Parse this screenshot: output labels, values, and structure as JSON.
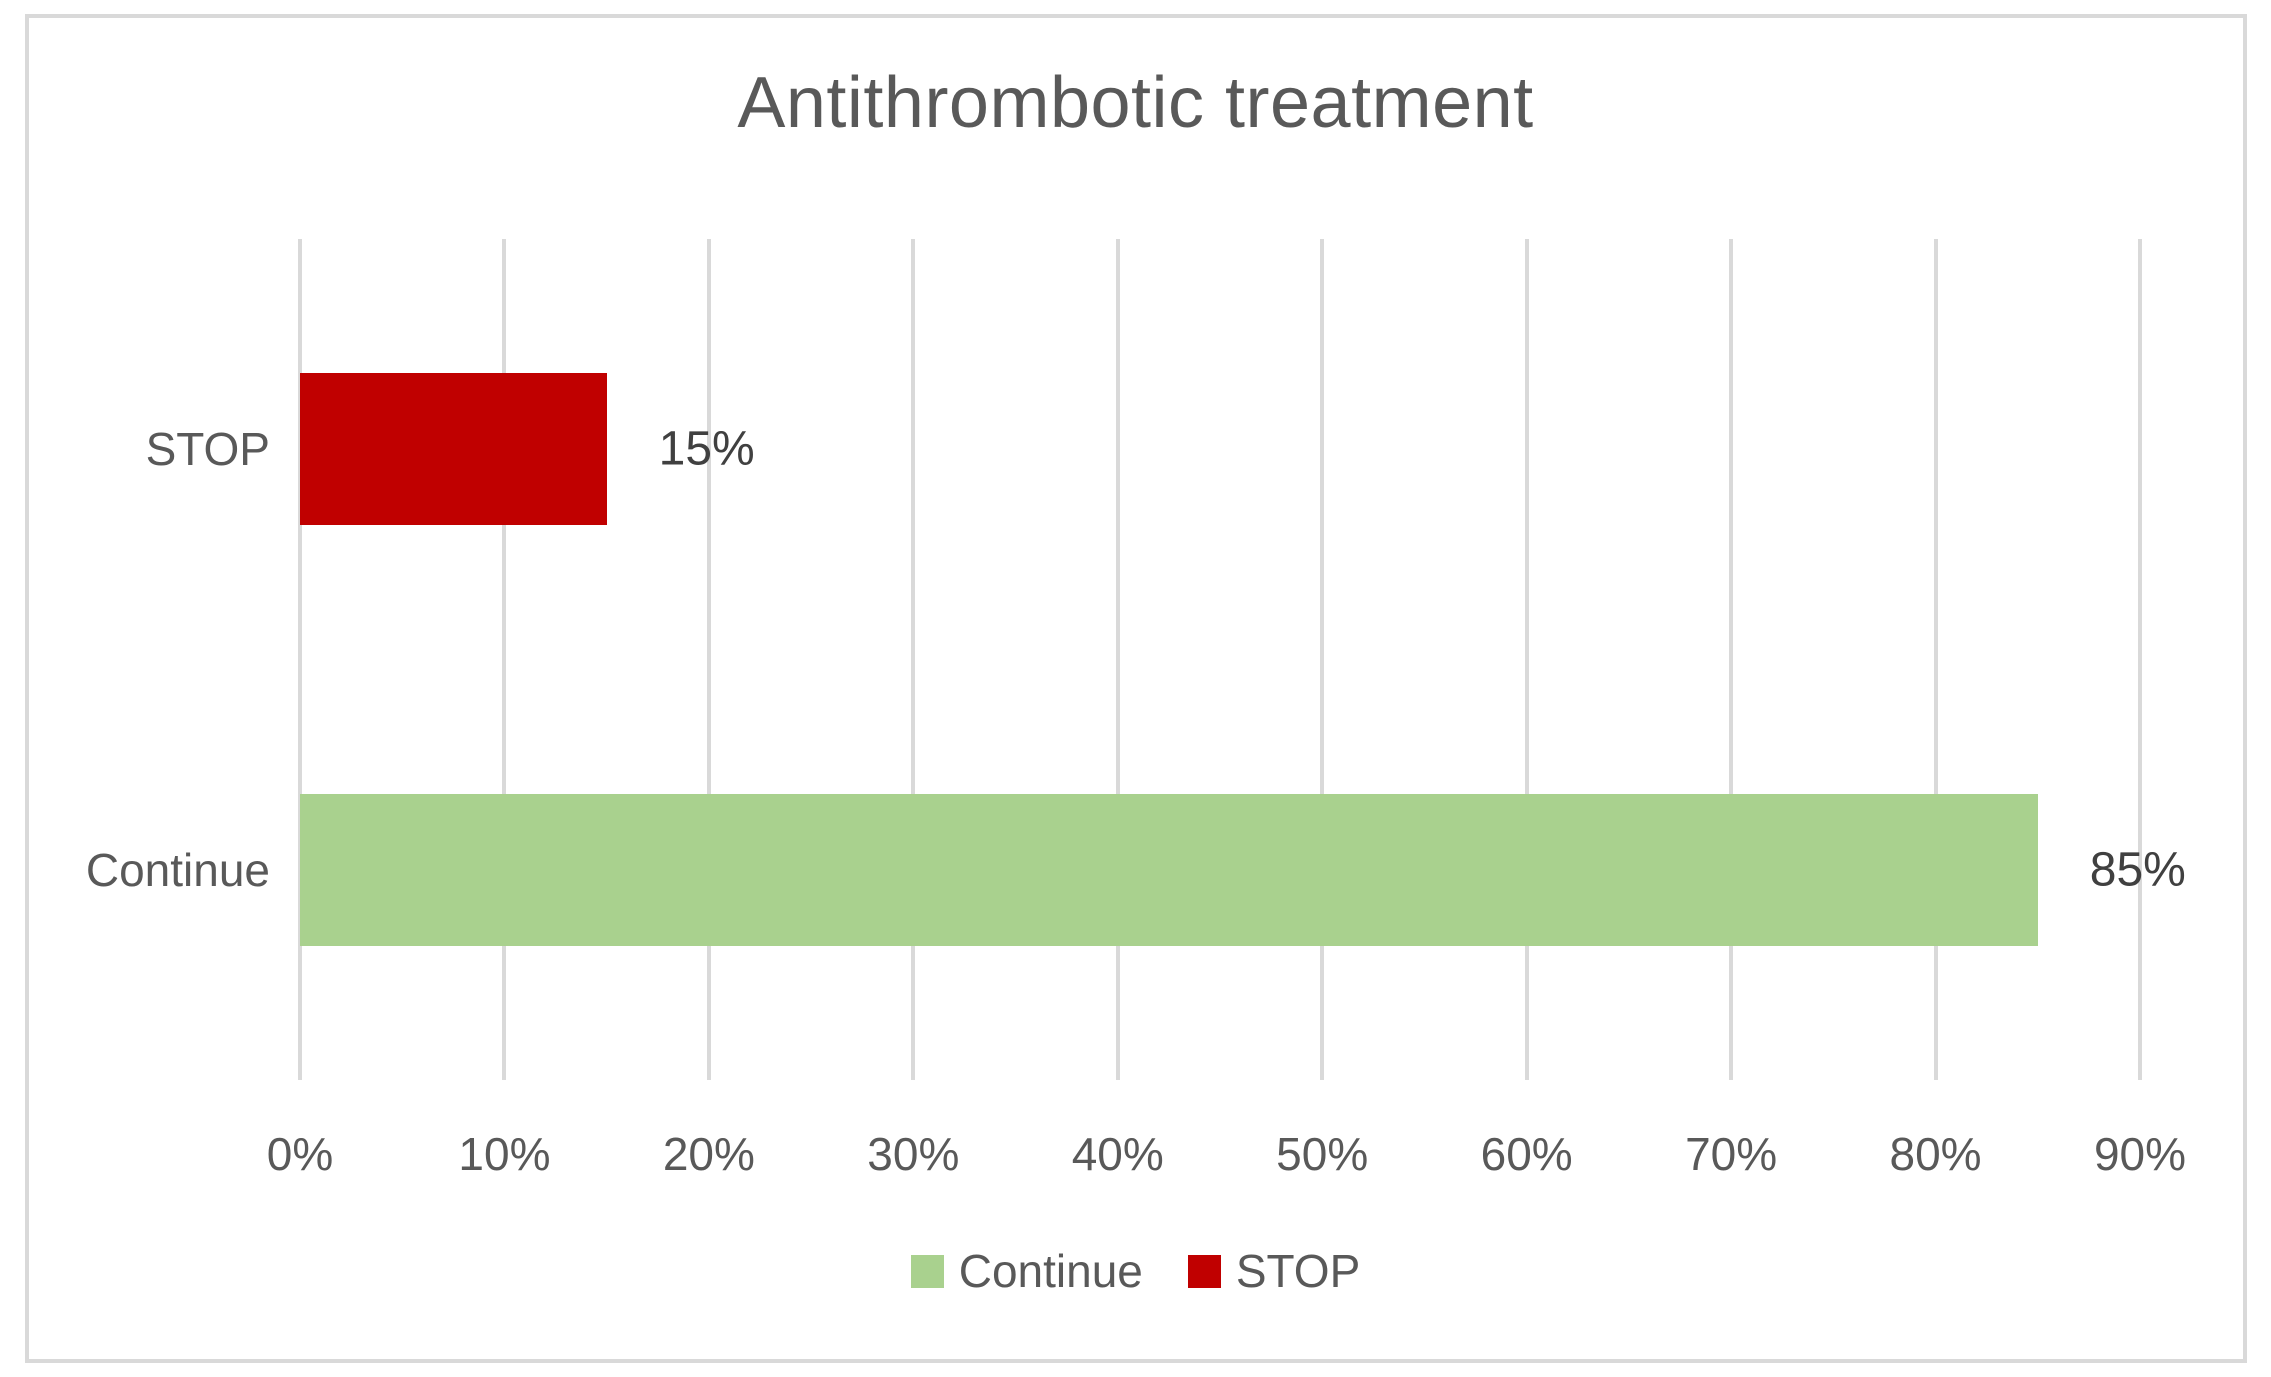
{
  "chart_data": {
    "type": "bar",
    "orientation": "horizontal",
    "title": "Antithrombotic treatment",
    "categories": [
      "STOP",
      "Continue"
    ],
    "values": [
      15,
      85
    ],
    "colors": [
      "#C00000",
      "#A9D18E"
    ],
    "data_labels": [
      "15%",
      "85%"
    ],
    "xlabel": "",
    "ylabel": "",
    "xlim": [
      0,
      90
    ],
    "x_ticks": [
      "0%",
      "10%",
      "20%",
      "30%",
      "40%",
      "50%",
      "60%",
      "70%",
      "80%",
      "90%"
    ],
    "x_tick_values": [
      0,
      10,
      20,
      30,
      40,
      50,
      60,
      70,
      80,
      90
    ],
    "grid": "vertical-only",
    "legend": {
      "position": "bottom-center",
      "entries": [
        {
          "label": "Continue",
          "color": "#A9D18E"
        },
        {
          "label": "STOP",
          "color": "#C00000"
        }
      ]
    }
  },
  "colors": {
    "background": "#FFFFFF",
    "frame_border": "#D9D9D9",
    "gridline": "#D9D9D9",
    "title_text": "#595959",
    "axis_text": "#595959",
    "data_label_text": "#404040",
    "bar_stop": "#C00000",
    "bar_continue": "#A9D18E"
  }
}
